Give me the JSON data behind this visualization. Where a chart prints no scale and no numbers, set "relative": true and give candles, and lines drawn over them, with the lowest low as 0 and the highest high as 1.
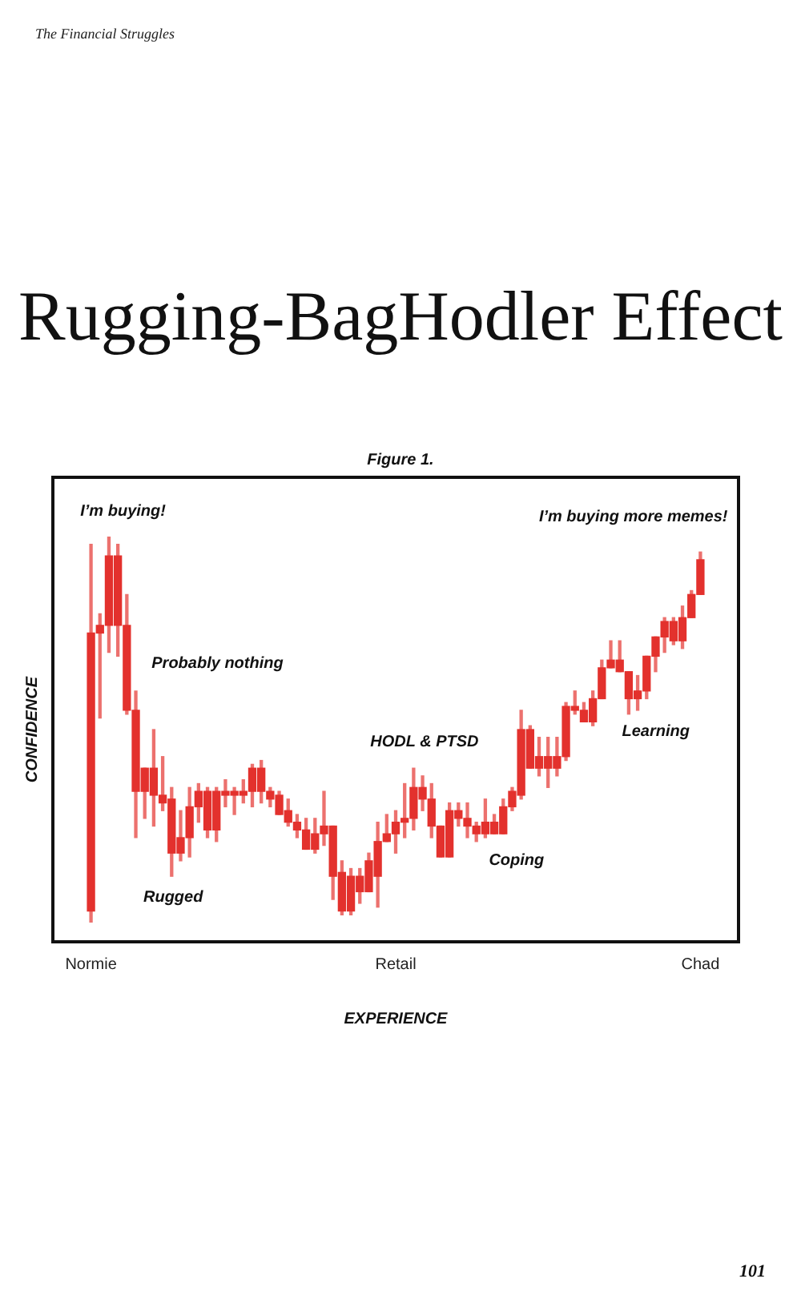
{
  "chart_data": {
    "type": "candlestick",
    "title": "Rugging-BagHodler Effect",
    "subtitle": "Figure 1.",
    "xlabel": "EXPERIENCE",
    "ylabel": "CONFIDENCE",
    "relative": true,
    "color": "#e3312d",
    "categories": [
      "Normie",
      null,
      null,
      null,
      null,
      null,
      null,
      null,
      null,
      null,
      null,
      null,
      null,
      null,
      null,
      null,
      null,
      null,
      null,
      null,
      null,
      null,
      null,
      null,
      null,
      null,
      null,
      null,
      null,
      null,
      null,
      null,
      null,
      null,
      "Retail",
      null,
      null,
      null,
      null,
      null,
      null,
      null,
      null,
      null,
      null,
      null,
      null,
      null,
      null,
      null,
      null,
      null,
      null,
      null,
      null,
      null,
      null,
      null,
      null,
      null,
      null,
      null,
      null,
      null,
      null,
      null,
      null,
      null,
      "Chad"
    ],
    "ohlc": [
      [
        0.03,
        0.98,
        0,
        0.75
      ],
      [
        0.75,
        0.8,
        0.53,
        0.77
      ],
      [
        0.77,
        1,
        0.7,
        0.95
      ],
      [
        0.77,
        0.98,
        0.69,
        0.95
      ],
      [
        0.55,
        0.85,
        0.54,
        0.77
      ],
      [
        0.34,
        0.6,
        0.22,
        0.55
      ],
      [
        0.34,
        0.4,
        0.27,
        0.4
      ],
      [
        0.33,
        0.5,
        0.25,
        0.4
      ],
      [
        0.31,
        0.43,
        0.29,
        0.33
      ],
      [
        0.18,
        0.35,
        0.12,
        0.32
      ],
      [
        0.18,
        0.29,
        0.16,
        0.22
      ],
      [
        0.22,
        0.35,
        0.17,
        0.3
      ],
      [
        0.3,
        0.36,
        0.26,
        0.34
      ],
      [
        0.24,
        0.35,
        0.22,
        0.34
      ],
      [
        0.24,
        0.35,
        0.21,
        0.34
      ],
      [
        0.33,
        0.37,
        0.3,
        0.34
      ],
      [
        0.33,
        0.35,
        0.28,
        0.34
      ],
      [
        0.33,
        0.37,
        0.31,
        0.34
      ],
      [
        0.34,
        0.41,
        0.3,
        0.4
      ],
      [
        0.34,
        0.42,
        0.31,
        0.4
      ],
      [
        0.32,
        0.35,
        0.3,
        0.34
      ],
      [
        0.28,
        0.34,
        0.28,
        0.33
      ],
      [
        0.26,
        0.32,
        0.25,
        0.29
      ],
      [
        0.24,
        0.28,
        0.22,
        0.26
      ],
      [
        0.19,
        0.27,
        0.19,
        0.24
      ],
      [
        0.19,
        0.27,
        0.18,
        0.23
      ],
      [
        0.23,
        0.34,
        0.2,
        0.25
      ],
      [
        0.12,
        0.25,
        0.06,
        0.25
      ],
      [
        0.03,
        0.16,
        0.02,
        0.13
      ],
      [
        0.03,
        0.14,
        0.02,
        0.12
      ],
      [
        0.08,
        0.14,
        0.05,
        0.12
      ],
      [
        0.08,
        0.18,
        0.08,
        0.16
      ],
      [
        0.12,
        0.26,
        0.04,
        0.21
      ],
      [
        0.21,
        0.28,
        0.21,
        0.23
      ],
      [
        0.23,
        0.29,
        0.18,
        0.26
      ],
      [
        0.26,
        0.36,
        0.22,
        0.27
      ],
      [
        0.27,
        0.4,
        0.24,
        0.35
      ],
      [
        0.32,
        0.38,
        0.29,
        0.35
      ],
      [
        0.25,
        0.36,
        0.22,
        0.32
      ],
      [
        0.17,
        0.25,
        0.17,
        0.25
      ],
      [
        0.17,
        0.31,
        0.17,
        0.29
      ],
      [
        0.27,
        0.31,
        0.25,
        0.29
      ],
      [
        0.25,
        0.31,
        0.22,
        0.27
      ],
      [
        0.23,
        0.26,
        0.21,
        0.25
      ],
      [
        0.23,
        0.32,
        0.22,
        0.26
      ],
      [
        0.23,
        0.28,
        0.23,
        0.26
      ],
      [
        0.23,
        0.32,
        0.23,
        0.3
      ],
      [
        0.3,
        0.35,
        0.29,
        0.34
      ],
      [
        0.33,
        0.55,
        0.32,
        0.5
      ],
      [
        0.4,
        0.51,
        0.4,
        0.5
      ],
      [
        0.4,
        0.48,
        0.38,
        0.43
      ],
      [
        0.4,
        0.48,
        0.35,
        0.43
      ],
      [
        0.4,
        0.48,
        0.38,
        0.43
      ],
      [
        0.43,
        0.57,
        0.42,
        0.56
      ],
      [
        0.55,
        0.6,
        0.54,
        0.56
      ],
      [
        0.52,
        0.57,
        0.52,
        0.55
      ],
      [
        0.52,
        0.6,
        0.51,
        0.58
      ],
      [
        0.58,
        0.68,
        0.58,
        0.66
      ],
      [
        0.66,
        0.73,
        0.66,
        0.68
      ],
      [
        0.65,
        0.73,
        0.65,
        0.68
      ],
      [
        0.58,
        0.65,
        0.54,
        0.65
      ],
      [
        0.58,
        0.64,
        0.55,
        0.6
      ],
      [
        0.6,
        0.69,
        0.58,
        0.69
      ],
      [
        0.69,
        0.74,
        0.65,
        0.74
      ],
      [
        0.74,
        0.79,
        0.7,
        0.78
      ],
      [
        0.73,
        0.79,
        0.72,
        0.78
      ],
      [
        0.73,
        0.82,
        0.71,
        0.79
      ],
      [
        0.79,
        0.86,
        0.79,
        0.85
      ],
      [
        0.85,
        0.96,
        0.85,
        0.94
      ]
    ],
    "annotations": [
      "I’m buying!",
      "Probably nothing",
      "Rugged",
      "HODL & PTSD",
      "Coping",
      "Learning",
      "I’m buying more memes!",
      "The Financial Struggles",
      "101"
    ]
  }
}
